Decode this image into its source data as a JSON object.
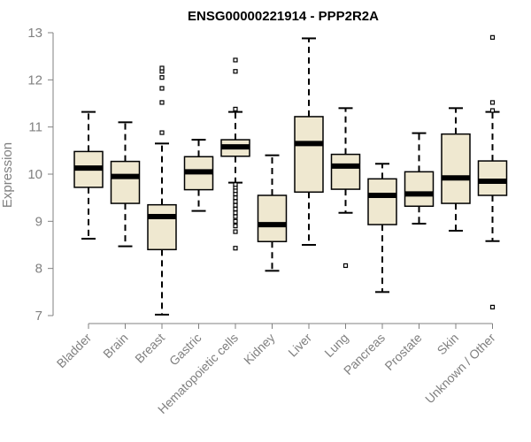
{
  "chart_data": {
    "type": "box",
    "title": "ENSG00000221914 - PPP2R2A",
    "xlabel": "",
    "ylabel": "Expression",
    "ylim": [
      7,
      13
    ],
    "yticks": [
      7,
      8,
      9,
      10,
      11,
      12,
      13
    ],
    "colors": {
      "box_fill": "#efe8d0",
      "box_stroke": "#000000",
      "axis": "#808080",
      "tick_text": "#808080"
    },
    "categories": [
      "Bladder",
      "Brain",
      "Breast",
      "Gastric",
      "Hematopoietic cells",
      "Kidney",
      "Liver",
      "Lung",
      "Pancreas",
      "Prostate",
      "Skin",
      "Unknown / Other"
    ],
    "boxes": [
      {
        "category": "Bladder",
        "whisker_low": 8.63,
        "q1": 9.72,
        "median": 10.13,
        "q3": 10.48,
        "whisker_high": 11.32,
        "outliers": []
      },
      {
        "category": "Brain",
        "whisker_low": 8.47,
        "q1": 9.38,
        "median": 9.95,
        "q3": 10.27,
        "whisker_high": 11.1,
        "outliers": []
      },
      {
        "category": "Breast",
        "whisker_low": 7.02,
        "q1": 8.4,
        "median": 9.1,
        "q3": 9.35,
        "whisker_high": 10.65,
        "outliers": [
          10.88,
          11.52,
          11.82,
          12.05,
          12.18,
          12.25
        ]
      },
      {
        "category": "Gastric",
        "whisker_low": 9.22,
        "q1": 9.67,
        "median": 10.05,
        "q3": 10.37,
        "whisker_high": 10.73,
        "outliers": []
      },
      {
        "category": "Hematopoietic cells",
        "whisker_low": 9.82,
        "q1": 10.38,
        "median": 10.58,
        "q3": 10.73,
        "whisker_high": 11.32,
        "outliers": [
          8.43,
          8.78,
          8.9,
          9.0,
          9.1,
          9.18,
          9.26,
          9.34,
          9.42,
          9.5,
          9.58,
          9.65,
          9.72,
          9.78,
          11.38,
          12.18,
          12.42
        ]
      },
      {
        "category": "Kidney",
        "whisker_low": 7.95,
        "q1": 8.57,
        "median": 8.93,
        "q3": 9.55,
        "whisker_high": 10.4,
        "outliers": []
      },
      {
        "category": "Liver",
        "whisker_low": 8.5,
        "q1": 9.62,
        "median": 10.65,
        "q3": 11.22,
        "whisker_high": 12.88,
        "outliers": []
      },
      {
        "category": "Lung",
        "whisker_low": 9.18,
        "q1": 9.68,
        "median": 10.17,
        "q3": 10.42,
        "whisker_high": 11.4,
        "outliers": [
          8.06
        ]
      },
      {
        "category": "Pancreas",
        "whisker_low": 7.5,
        "q1": 8.93,
        "median": 9.55,
        "q3": 9.9,
        "whisker_high": 10.22,
        "outliers": []
      },
      {
        "category": "Prostate",
        "whisker_low": 8.95,
        "q1": 9.32,
        "median": 9.58,
        "q3": 10.05,
        "whisker_high": 10.87,
        "outliers": []
      },
      {
        "category": "Skin",
        "whisker_low": 8.8,
        "q1": 9.38,
        "median": 9.92,
        "q3": 10.85,
        "whisker_high": 11.4,
        "outliers": []
      },
      {
        "category": "Unknown / Other",
        "whisker_low": 8.58,
        "q1": 9.55,
        "median": 9.85,
        "q3": 10.28,
        "whisker_high": 11.32,
        "outliers": [
          7.18,
          11.35,
          11.52,
          12.9
        ]
      }
    ]
  }
}
